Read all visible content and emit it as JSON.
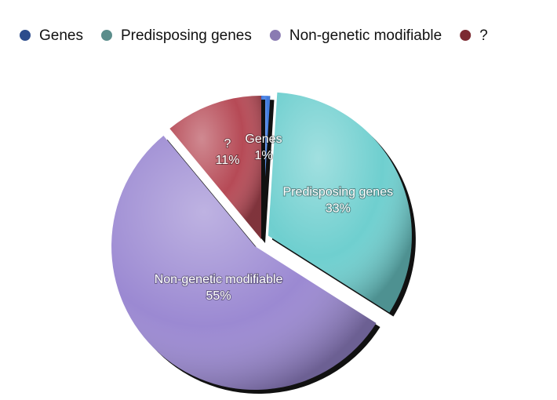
{
  "chart_data": {
    "type": "pie",
    "categories": [
      "Genes",
      "Predisposing genes",
      "Non-genetic modifiable",
      "?"
    ],
    "values": [
      1,
      33,
      55,
      11
    ],
    "value_labels": [
      "1%",
      "33%",
      "55%",
      "11%"
    ],
    "colors": [
      "#3b78e0",
      "#6fcfcf",
      "#9b89d2",
      "#b64a56"
    ],
    "legend_colors": [
      "#2c4c8c",
      "#5b8d8b",
      "#8a7bb2",
      "#7c2a31"
    ],
    "legend": "top"
  }
}
